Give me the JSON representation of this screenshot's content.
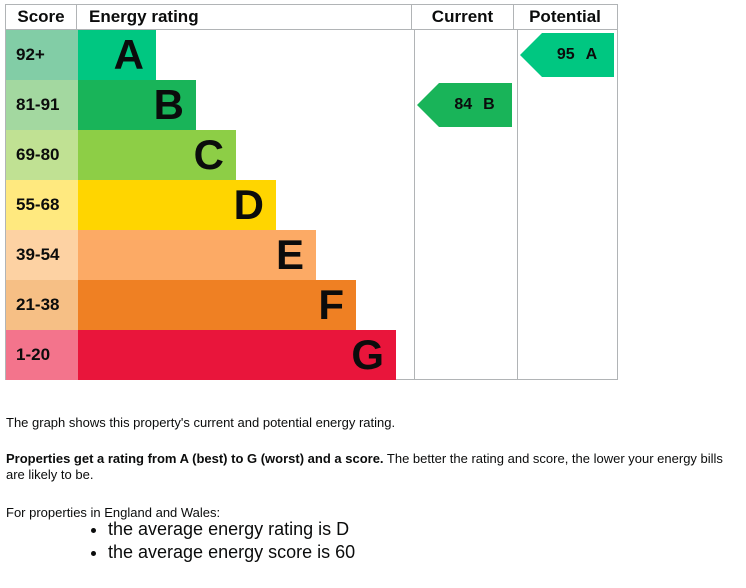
{
  "chart_data": {
    "type": "bar",
    "title": "Energy rating",
    "columns": [
      "Score",
      "Energy rating",
      "Current",
      "Potential"
    ],
    "bands": [
      {
        "score": "92+",
        "letter": "A",
        "color": "#00c781",
        "tint": "#82cda6"
      },
      {
        "score": "81-91",
        "letter": "B",
        "color": "#19b459",
        "tint": "#a3d8a0"
      },
      {
        "score": "69-80",
        "letter": "C",
        "color": "#8dce46",
        "tint": "#c0e193"
      },
      {
        "score": "55-68",
        "letter": "D",
        "color": "#ffd500",
        "tint": "#ffe97f"
      },
      {
        "score": "39-54",
        "letter": "E",
        "color": "#fcaa65",
        "tint": "#fdd2a3"
      },
      {
        "score": "21-38",
        "letter": "F",
        "color": "#ef8023",
        "tint": "#f6bf85"
      },
      {
        "score": "1-20",
        "letter": "G",
        "color": "#e9153b",
        "tint": "#f3748c"
      }
    ],
    "current": {
      "score": 84,
      "letter": "B",
      "band_index": 1,
      "color": "#19b459"
    },
    "potential": {
      "score": 95,
      "letter": "A",
      "band_index": 0,
      "color": "#00c781"
    },
    "legend_position": "none",
    "grid": false
  },
  "header": {
    "score": "Score",
    "energy_rating": "Energy rating",
    "current": "Current",
    "potential": "Potential"
  },
  "text": {
    "p1": "The graph shows this property's current and potential energy rating.",
    "p2_bold": "Properties get a rating from A (best) to G (worst) and a score.",
    "p2_rest": " The better the rating and score, the lower your energy bills are likely to be.",
    "p3": "For properties in England and Wales:",
    "bullets": [
      "the average energy rating is D",
      "the average energy score is 60"
    ]
  }
}
